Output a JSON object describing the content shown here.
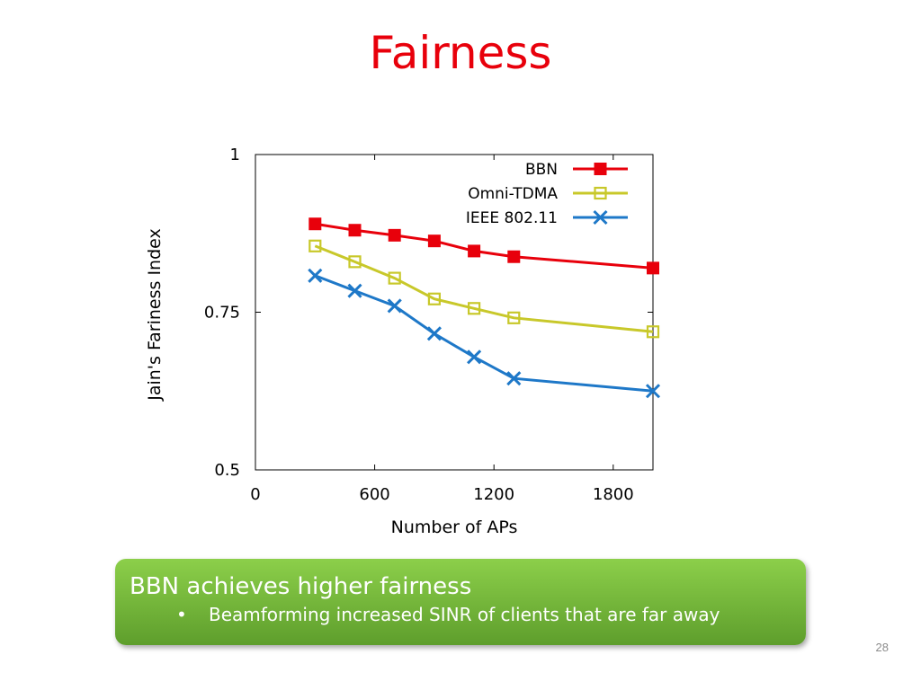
{
  "slide": {
    "title": "Fairness",
    "page_number": "28"
  },
  "callout": {
    "main": "BBN  achieves higher fairness",
    "bullet_marker": "•",
    "bullet": "Beamforming increased SINR of clients that are far away",
    "colors": {
      "top": "#8ccf4a",
      "bottom": "#5e9e2c"
    }
  },
  "chart_data": {
    "type": "line",
    "xlabel": "Number of APs",
    "ylabel": "Jain's Fariness Index",
    "xlim": [
      0,
      2000
    ],
    "ylim": [
      0.5,
      1
    ],
    "xticks": [
      0,
      600,
      1200,
      1800
    ],
    "xtick_labels": [
      "0",
      "600",
      "1200",
      "1800"
    ],
    "yticks": [
      0.5,
      0.75,
      1
    ],
    "ytick_labels": [
      "0.5",
      "0.75",
      "1"
    ],
    "grid": false,
    "legend_position": "top-right",
    "series": [
      {
        "name": "BBN",
        "color": "#e8000b",
        "marker": "filled-square",
        "x": [
          300,
          500,
          700,
          900,
          1100,
          1300,
          2000
        ],
        "y": [
          0.89,
          0.88,
          0.872,
          0.863,
          0.847,
          0.838,
          0.82
        ]
      },
      {
        "name": "Omni-TDMA",
        "color": "#c8c82a",
        "marker": "open-square",
        "x": [
          300,
          500,
          700,
          900,
          1100,
          1300,
          2000
        ],
        "y": [
          0.855,
          0.83,
          0.804,
          0.771,
          0.756,
          0.741,
          0.719
        ]
      },
      {
        "name": "IEEE 802.11",
        "color": "#1e78c8",
        "marker": "x",
        "x": [
          300,
          500,
          700,
          900,
          1100,
          1300,
          2000
        ],
        "y": [
          0.808,
          0.784,
          0.76,
          0.716,
          0.679,
          0.645,
          0.625
        ]
      }
    ]
  }
}
